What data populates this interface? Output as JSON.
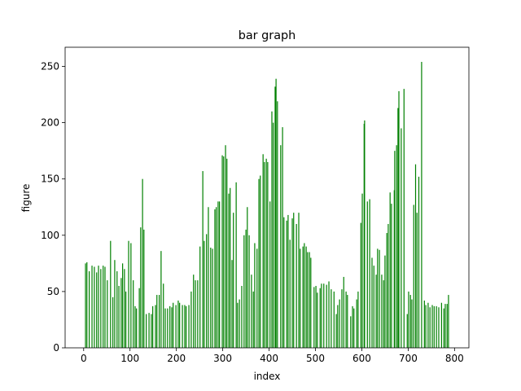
{
  "chart_data": {
    "type": "bar",
    "title": "bar graph",
    "x_label": "index",
    "y_label": "figure",
    "color": "green",
    "xlim": [
      -40,
      831
    ],
    "ylim": [
      0,
      267
    ],
    "xticks": [
      0,
      100,
      200,
      300,
      400,
      500,
      600,
      700,
      800
    ],
    "yticks": [
      0,
      50,
      100,
      150,
      200,
      250
    ],
    "x": [
      4,
      7,
      12,
      18,
      23,
      28,
      32,
      37,
      42,
      46,
      51,
      58,
      63,
      67,
      72,
      76,
      81,
      84,
      88,
      91,
      97,
      102,
      107,
      111,
      114,
      120,
      123,
      127,
      130,
      135,
      141,
      146,
      149,
      155,
      158,
      163,
      167,
      172,
      176,
      181,
      186,
      190,
      193,
      199,
      204,
      207,
      213,
      218,
      221,
      227,
      232,
      237,
      241,
      246,
      251,
      257,
      260,
      265,
      269,
      274,
      278,
      283,
      286,
      290,
      293,
      299,
      302,
      306,
      309,
      313,
      316,
      320,
      323,
      329,
      332,
      336,
      341,
      346,
      350,
      353,
      357,
      362,
      366,
      369,
      374,
      378,
      381,
      387,
      390,
      394,
      397,
      402,
      406,
      409,
      413,
      415,
      418,
      425,
      429,
      432,
      438,
      441,
      445,
      450,
      453,
      459,
      464,
      467,
      473,
      476,
      480,
      483,
      487,
      490,
      497,
      501,
      504,
      510,
      513,
      518,
      524,
      529,
      534,
      540,
      545,
      548,
      552,
      557,
      561,
      566,
      569,
      576,
      580,
      583,
      589,
      592,
      598,
      601,
      605,
      606,
      612,
      617,
      622,
      626,
      631,
      634,
      638,
      643,
      647,
      650,
      654,
      657,
      661,
      664,
      670,
      671,
      675,
      678,
      680,
      685,
      691,
      698,
      701,
      705,
      708,
      712,
      716,
      719,
      723,
      729,
      735,
      738,
      743,
      747,
      752,
      756,
      761,
      766,
      772,
      777,
      780,
      784,
      787
    ],
    "values": [
      75,
      76,
      68,
      73,
      72,
      67,
      73,
      70,
      73,
      72,
      60,
      95,
      45,
      78,
      68,
      55,
      62,
      75,
      70,
      50,
      95,
      93,
      60,
      37,
      35,
      53,
      107,
      150,
      105,
      30,
      31,
      30,
      37,
      38,
      47,
      47,
      86,
      57,
      35,
      35,
      37,
      36,
      40,
      38,
      42,
      40,
      38,
      38,
      37,
      38,
      50,
      65,
      60,
      60,
      90,
      157,
      95,
      101,
      125,
      89,
      88,
      123,
      125,
      130,
      130,
      171,
      170,
      180,
      168,
      137,
      142,
      78,
      120,
      147,
      40,
      43,
      55,
      100,
      105,
      125,
      100,
      65,
      50,
      93,
      88,
      150,
      153,
      172,
      165,
      168,
      165,
      130,
      210,
      200,
      232,
      239,
      219,
      180,
      196,
      116,
      113,
      118,
      96,
      115,
      120,
      110,
      120,
      88,
      90,
      93,
      90,
      85,
      85,
      80,
      54,
      55,
      49,
      53,
      57,
      57,
      56,
      59,
      52,
      50,
      30,
      38,
      43,
      52,
      63,
      50,
      47,
      28,
      37,
      35,
      43,
      50,
      111,
      137,
      199,
      202,
      130,
      132,
      80,
      73,
      65,
      88,
      87,
      65,
      60,
      82,
      102,
      110,
      138,
      128,
      140,
      175,
      180,
      213,
      228,
      195,
      230,
      30,
      50,
      47,
      43,
      127,
      163,
      120,
      152,
      254,
      42,
      38,
      40,
      36,
      38,
      37,
      37,
      36,
      40,
      35,
      39,
      39,
      47
    ]
  }
}
